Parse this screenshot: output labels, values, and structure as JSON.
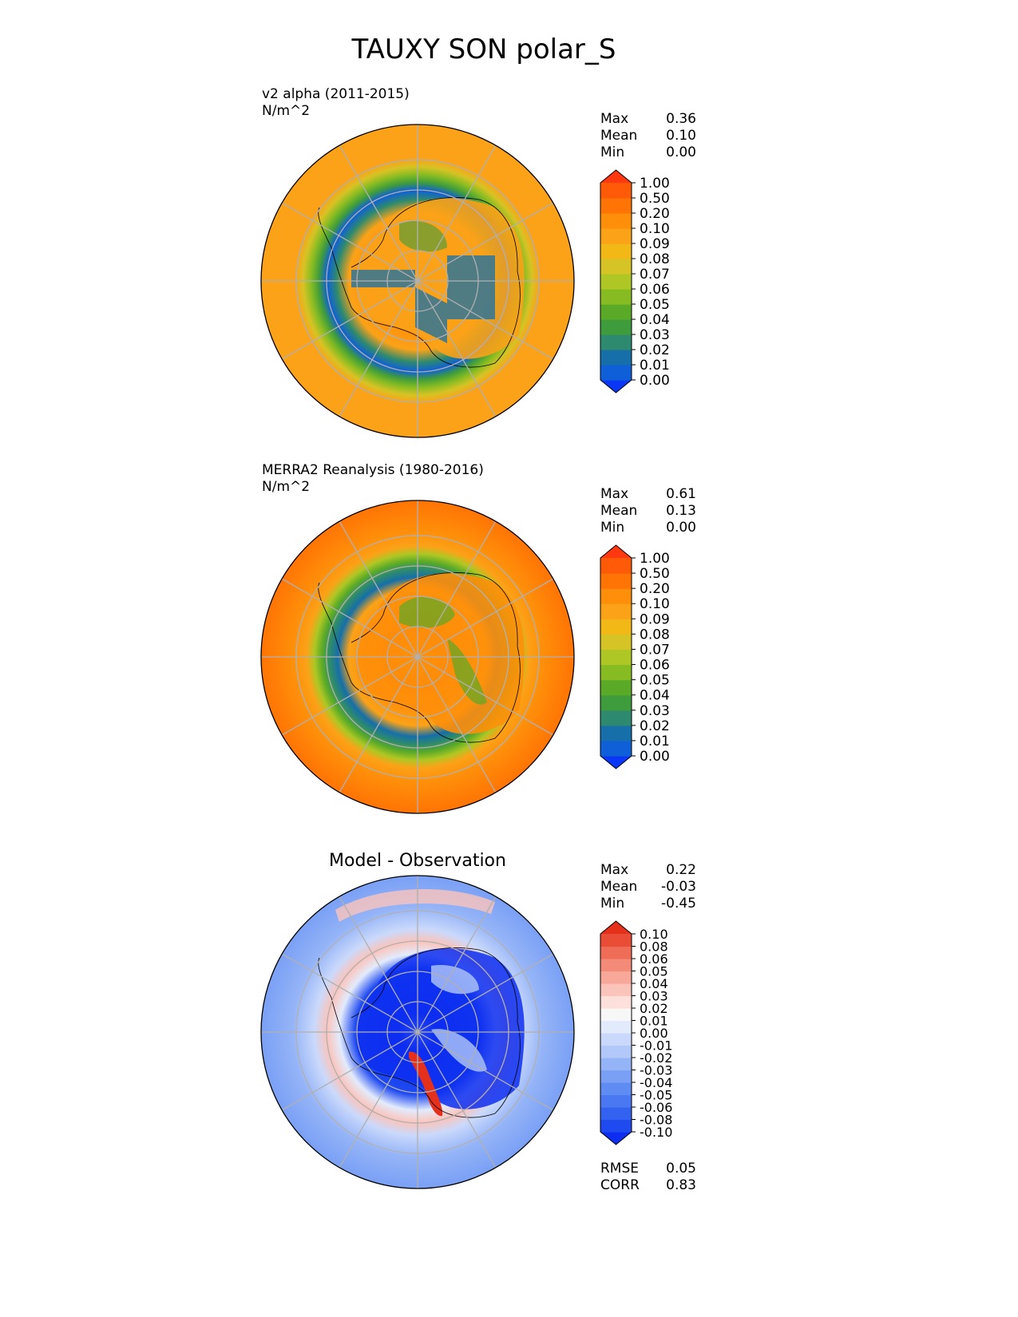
{
  "figure": {
    "title": "TAUXY SON polar_S"
  },
  "chart_data": [
    {
      "type": "heatmap",
      "projection": "south-polar-stereographic",
      "title": "v2 alpha (2011-2015)",
      "units": "N/m^2",
      "stats": {
        "labels": [
          "Max",
          "Mean",
          "Min"
        ],
        "values": [
          "0.36",
          "0.10",
          "0.00"
        ]
      },
      "colorbar": {
        "ticks": [
          "1.00",
          "0.50",
          "0.20",
          "0.10",
          "0.09",
          "0.08",
          "0.07",
          "0.06",
          "0.05",
          "0.04",
          "0.03",
          "0.02",
          "0.01",
          "0.00"
        ],
        "colors": [
          "#0a36f5",
          "#0f5fd8",
          "#166fa8",
          "#2d8a6e",
          "#3f9c3c",
          "#5aaa28",
          "#86bc22",
          "#aec724",
          "#d6c325",
          "#f2b816",
          "#fba218",
          "#ff8f0a",
          "#ff7404",
          "#ff5a08",
          "#ff3810"
        ]
      }
    },
    {
      "type": "heatmap",
      "projection": "south-polar-stereographic",
      "title": "MERRA2 Reanalysis (1980-2016)",
      "units": "N/m^2",
      "stats": {
        "labels": [
          "Max",
          "Mean",
          "Min"
        ],
        "values": [
          "0.61",
          "0.13",
          "0.00"
        ]
      },
      "colorbar": {
        "ticks": [
          "1.00",
          "0.50",
          "0.20",
          "0.10",
          "0.09",
          "0.08",
          "0.07",
          "0.06",
          "0.05",
          "0.04",
          "0.03",
          "0.02",
          "0.01",
          "0.00"
        ],
        "colors": [
          "#0a36f5",
          "#0f5fd8",
          "#166fa8",
          "#2d8a6e",
          "#3f9c3c",
          "#5aaa28",
          "#86bc22",
          "#aec724",
          "#d6c325",
          "#f2b816",
          "#fba218",
          "#ff8f0a",
          "#ff7404",
          "#ff5a08",
          "#ff3810"
        ]
      }
    },
    {
      "type": "heatmap",
      "projection": "south-polar-stereographic",
      "title": "Model - Observation",
      "stats": {
        "labels": [
          "Max",
          "Mean",
          "Min"
        ],
        "values": [
          "0.22",
          "-0.03",
          "-0.45"
        ]
      },
      "metrics": {
        "labels": [
          "RMSE",
          "CORR"
        ],
        "values": [
          "0.05",
          "0.83"
        ]
      },
      "colorbar": {
        "ticks": [
          "0.10",
          "0.08",
          "0.06",
          "0.05",
          "0.04",
          "0.03",
          "0.02",
          "0.01",
          "0.00",
          "-0.01",
          "-0.02",
          "-0.03",
          "-0.04",
          "-0.05",
          "-0.06",
          "-0.08",
          "-0.10"
        ],
        "colors": [
          "#0d2ef0",
          "#1f4af0",
          "#3462f0",
          "#4a78f2",
          "#5f8cf3",
          "#7aa0f5",
          "#95b4f7",
          "#b2c8f9",
          "#cad9fb",
          "#e2ebfc",
          "#f7f7f7",
          "#fde0db",
          "#fbc4bb",
          "#f8a899",
          "#f48b78",
          "#ef6c56",
          "#ea4d36",
          "#e5301c"
        ]
      }
    }
  ]
}
